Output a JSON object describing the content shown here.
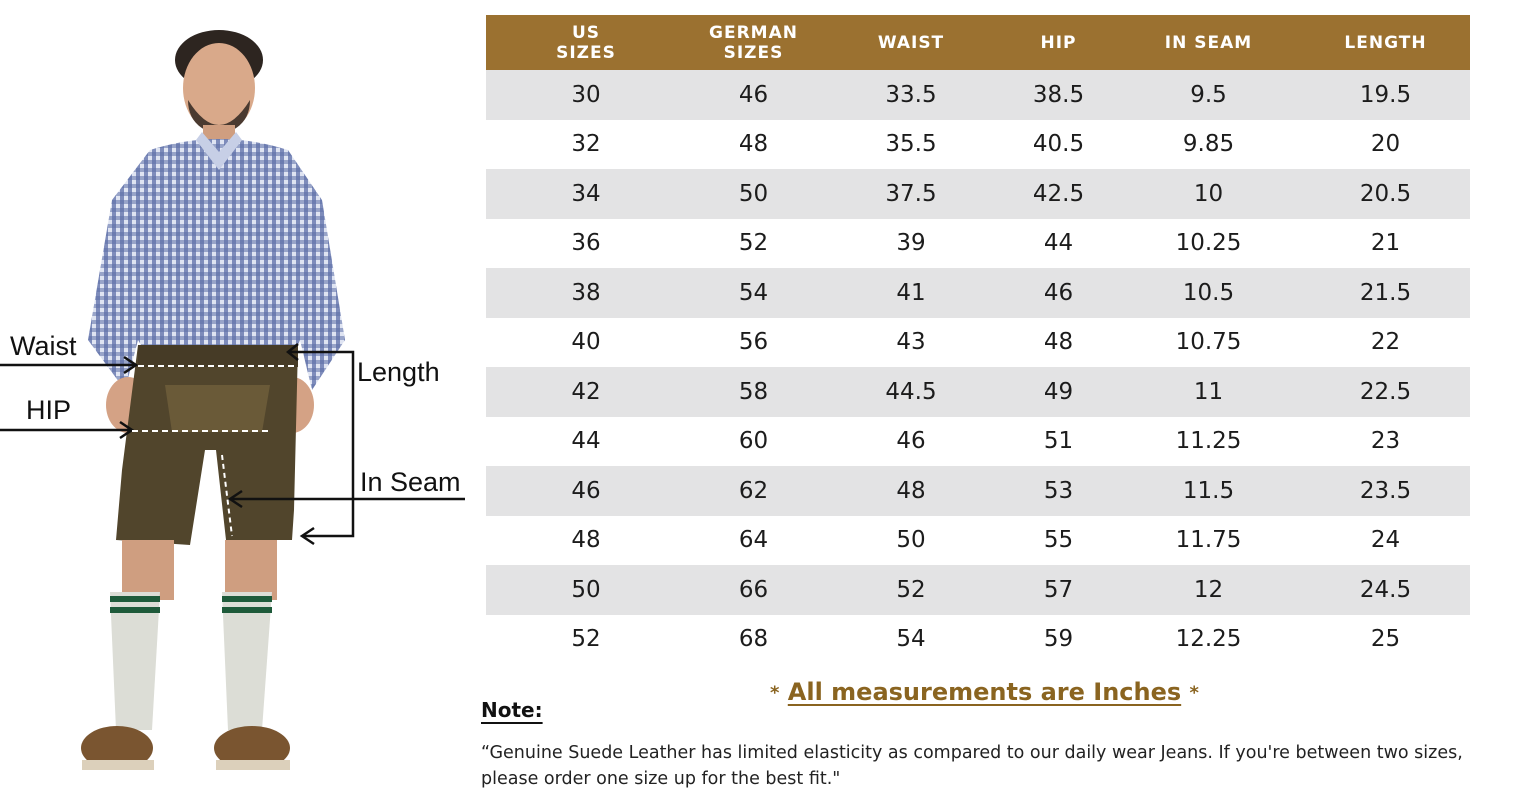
{
  "measure_labels": {
    "waist": "Waist",
    "hip": "HIP",
    "length": "Length",
    "in_seam": "In Seam"
  },
  "table": {
    "headers": [
      "US\nSIZES",
      "GERMAN\nSIZES",
      "WAIST",
      "HIP",
      "IN SEAM",
      "LENGTH"
    ],
    "rows": [
      [
        "30",
        "46",
        "33.5",
        "38.5",
        "9.5",
        "19.5"
      ],
      [
        "32",
        "48",
        "35.5",
        "40.5",
        "9.85",
        "20"
      ],
      [
        "34",
        "50",
        "37.5",
        "42.5",
        "10",
        "20.5"
      ],
      [
        "36",
        "52",
        "39",
        "44",
        "10.25",
        "21"
      ],
      [
        "38",
        "54",
        "41",
        "46",
        "10.5",
        "21.5"
      ],
      [
        "40",
        "56",
        "43",
        "48",
        "10.75",
        "22"
      ],
      [
        "42",
        "58",
        "44.5",
        "49",
        "11",
        "22.5"
      ],
      [
        "44",
        "60",
        "46",
        "51",
        "11.25",
        "23"
      ],
      [
        "46",
        "62",
        "48",
        "53",
        "11.5",
        "23.5"
      ],
      [
        "48",
        "64",
        "50",
        "55",
        "11.75",
        "24"
      ],
      [
        "50",
        "66",
        "52",
        "57",
        "12",
        "24.5"
      ],
      [
        "52",
        "68",
        "54",
        "59",
        "12.25",
        "25"
      ]
    ]
  },
  "units_note": {
    "star": "*",
    "text": "All measurements are Inches"
  },
  "note": {
    "title": "Note:",
    "body": "“Genuine Suede Leather has limited elasticity as compared to our daily wear Jeans. If you're between two sizes, please order one size up for the best fit.\""
  },
  "colors": {
    "header_bg": "#9b7130",
    "stripe_bg": "#e3e3e4",
    "accent_text": "#8a6420"
  }
}
